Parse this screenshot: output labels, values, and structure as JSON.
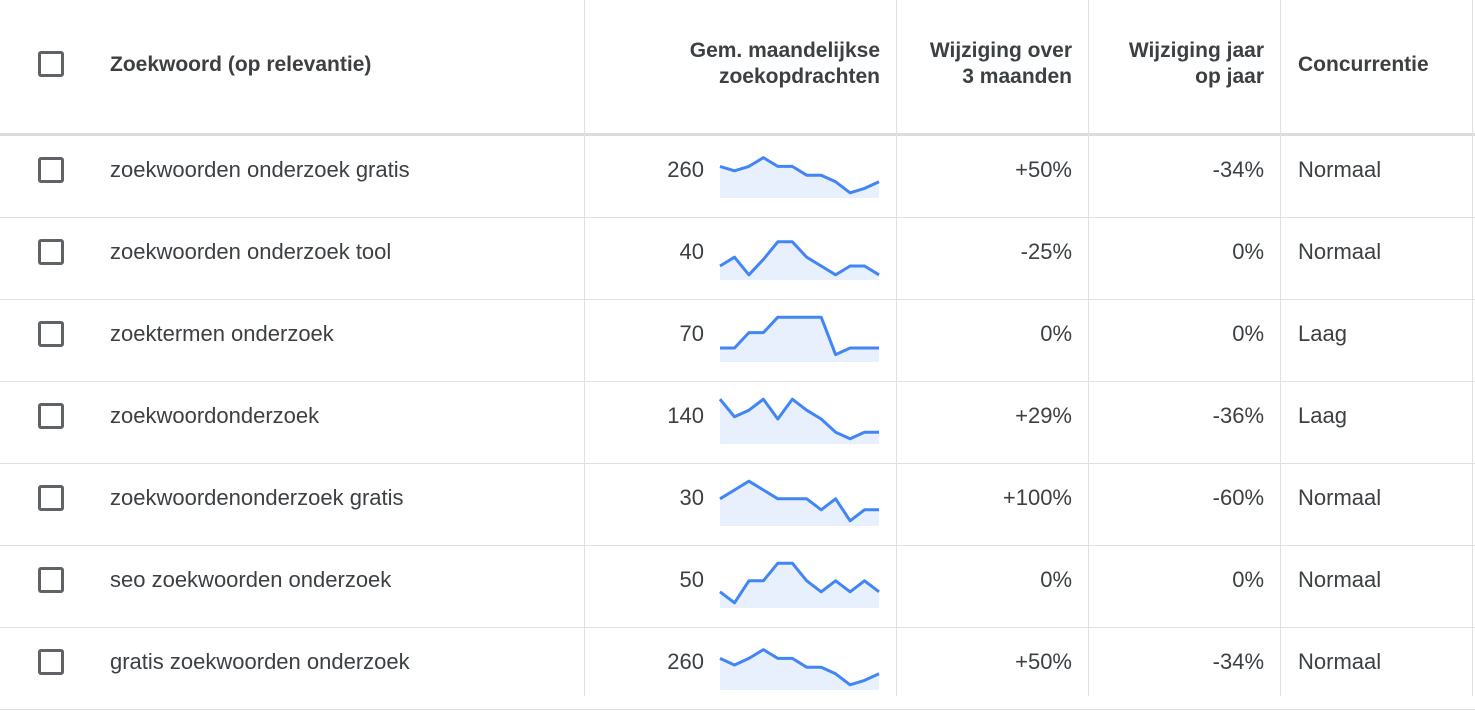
{
  "header": {
    "keyword": "Zoekwoord (op relevantie)",
    "avg_searches_line1": "Gem. maandelijkse",
    "avg_searches_line2": "zoekopdrachten",
    "three_month_line1": "Wijziging over",
    "three_month_line2": "3 maanden",
    "yoy_line1": "Wijziging jaar",
    "yoy_line2": "op jaar",
    "competition": "Concurrentie"
  },
  "colors": {
    "trend_line": "#4285f4",
    "trend_fill": "#e8f0fe"
  },
  "rows": [
    {
      "keyword": "zoekwoorden onderzoek gratis",
      "avg": "260",
      "three_month": "+50%",
      "yoy": "-34%",
      "competition": "Normaal",
      "trend": [
        0.65,
        0.55,
        0.65,
        0.85,
        0.65,
        0.65,
        0.45,
        0.45,
        0.3,
        0.05,
        0.15,
        0.3
      ]
    },
    {
      "keyword": "zoekwoorden onderzoek tool",
      "avg": "40",
      "three_month": "-25%",
      "yoy": "0%",
      "competition": "Normaal",
      "trend": [
        0.25,
        0.45,
        0.05,
        0.4,
        0.8,
        0.8,
        0.45,
        0.25,
        0.05,
        0.25,
        0.25,
        0.05
      ]
    },
    {
      "keyword": "zoektermen onderzoek",
      "avg": "70",
      "three_month": "0%",
      "yoy": "0%",
      "competition": "Laag",
      "trend": [
        0.25,
        0.25,
        0.6,
        0.6,
        0.95,
        0.95,
        0.95,
        0.95,
        0.1,
        0.25,
        0.25,
        0.25
      ]
    },
    {
      "keyword": "zoekwoordonderzoek",
      "avg": "140",
      "three_month": "+29%",
      "yoy": "-36%",
      "competition": "Laag",
      "trend": [
        0.95,
        0.55,
        0.7,
        0.95,
        0.5,
        0.95,
        0.7,
        0.5,
        0.2,
        0.05,
        0.2,
        0.2
      ]
    },
    {
      "keyword": "zoekwoordenonderzoek gratis",
      "avg": "30",
      "three_month": "+100%",
      "yoy": "-60%",
      "competition": "Normaal",
      "trend": [
        0.55,
        0.75,
        0.95,
        0.75,
        0.55,
        0.55,
        0.55,
        0.3,
        0.55,
        0.05,
        0.3,
        0.3
      ]
    },
    {
      "keyword": "seo zoekwoorden onderzoek",
      "avg": "50",
      "three_month": "0%",
      "yoy": "0%",
      "competition": "Normaal",
      "trend": [
        0.3,
        0.05,
        0.55,
        0.55,
        0.95,
        0.95,
        0.55,
        0.3,
        0.55,
        0.3,
        0.55,
        0.3
      ]
    },
    {
      "keyword": "gratis zoekwoorden onderzoek",
      "avg": "260",
      "three_month": "+50%",
      "yoy": "-34%",
      "competition": "Normaal",
      "trend": [
        0.65,
        0.5,
        0.65,
        0.85,
        0.65,
        0.65,
        0.45,
        0.45,
        0.3,
        0.05,
        0.15,
        0.3
      ]
    }
  ]
}
